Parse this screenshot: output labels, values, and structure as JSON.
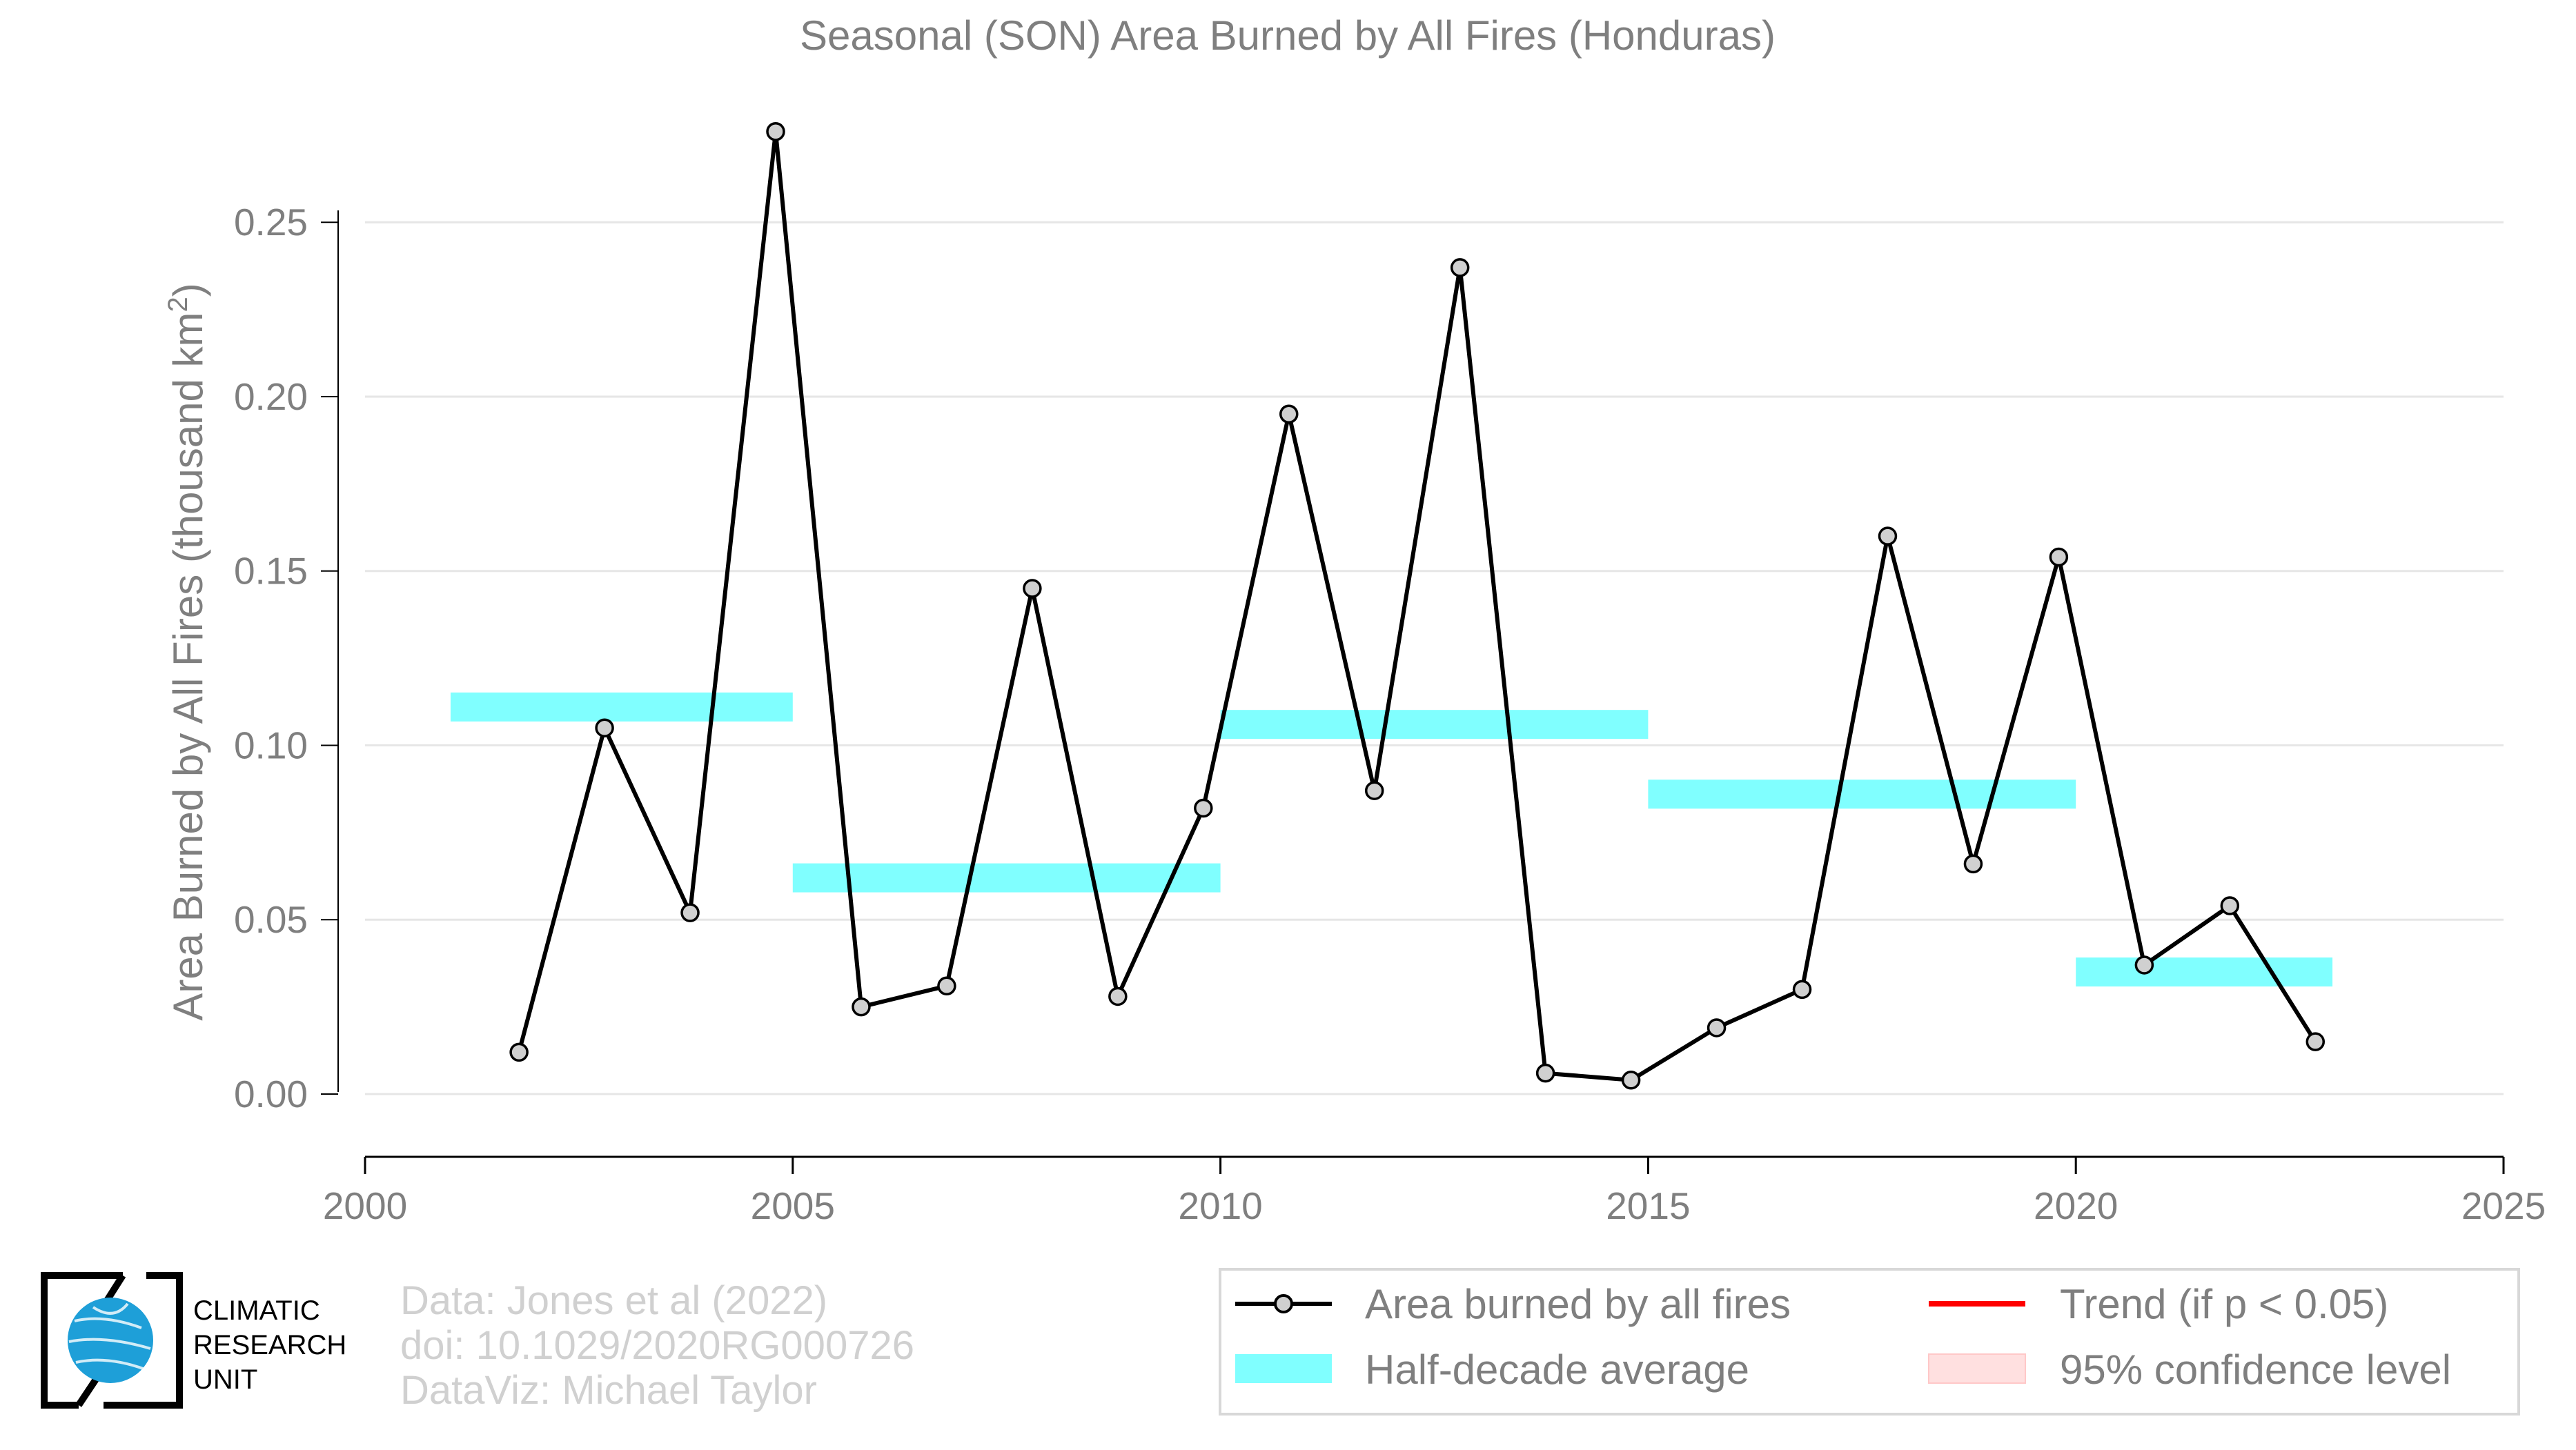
{
  "chart_data": {
    "type": "line",
    "title": "Seasonal (SON) Area Burned by All Fires (Honduras)",
    "ylabel_main": "Area Burned by All Fires (thousand km",
    "ylabel_sup": "2",
    "ylabel_close": ")",
    "xlim": [
      2000,
      2025
    ],
    "ylim": [
      -0.018,
      0.29
    ],
    "x_ticks": [
      2000,
      2005,
      2010,
      2015,
      2020,
      2025
    ],
    "x_tick_labels": [
      "2000",
      "2005",
      "2010",
      "2015",
      "2020",
      "2025"
    ],
    "y_ticks": [
      0.0,
      0.05,
      0.1,
      0.15,
      0.2,
      0.25
    ],
    "y_tick_labels": [
      "0.00",
      "0.05",
      "0.10",
      "0.15",
      "0.20",
      "0.25"
    ],
    "grid": "horizontal",
    "series": [
      {
        "name": "Area burned by all fires",
        "color": "#000000",
        "marker_fill": "#d0d0d0",
        "x": [
          2001.8,
          2002.8,
          2003.8,
          2004.8,
          2005.8,
          2006.8,
          2007.8,
          2008.8,
          2009.8,
          2010.8,
          2011.8,
          2012.8,
          2013.8,
          2014.8,
          2015.8,
          2016.8,
          2017.8,
          2018.8,
          2019.8,
          2020.8,
          2021.8,
          2022.8
        ],
        "y": [
          0.012,
          0.105,
          0.052,
          0.276,
          0.025,
          0.031,
          0.145,
          0.028,
          0.082,
          0.195,
          0.087,
          0.237,
          0.006,
          0.004,
          0.019,
          0.03,
          0.16,
          0.066,
          0.154,
          0.037,
          0.054,
          0.015
        ]
      }
    ],
    "half_decade_averages": {
      "name": "Half-decade average",
      "color": "#80ffff",
      "segments": [
        {
          "x_start": 2001,
          "x_end": 2005,
          "y": 0.111
        },
        {
          "x_start": 2005,
          "x_end": 2010,
          "y": 0.062
        },
        {
          "x_start": 2010,
          "x_end": 2015,
          "y": 0.106
        },
        {
          "x_start": 2015,
          "x_end": 2020,
          "y": 0.086
        },
        {
          "x_start": 2020,
          "x_end": 2023,
          "y": 0.035
        }
      ]
    },
    "legend": {
      "placement": "bottom-right",
      "entries": [
        {
          "label": "Area burned by all fires",
          "kind": "line-marker",
          "color": "#000000"
        },
        {
          "label": "Trend (if p < 0.05)",
          "kind": "line",
          "color": "#ff0000"
        },
        {
          "label": "Half-decade average",
          "kind": "patch",
          "color": "#80ffff"
        },
        {
          "label": "95% confidence level",
          "kind": "patch",
          "color": "#ffe0e0"
        }
      ]
    }
  },
  "credits": {
    "line1": "Data: Jones et al (2022)",
    "line2": "doi: 10.1029/2020RG000726",
    "line3": "DataViz: Michael Taylor"
  },
  "logo": {
    "line1": "CLIMATIC",
    "line2": "RESEARCH",
    "line3": "UNIT",
    "globe_color": "#1e9fd8"
  }
}
